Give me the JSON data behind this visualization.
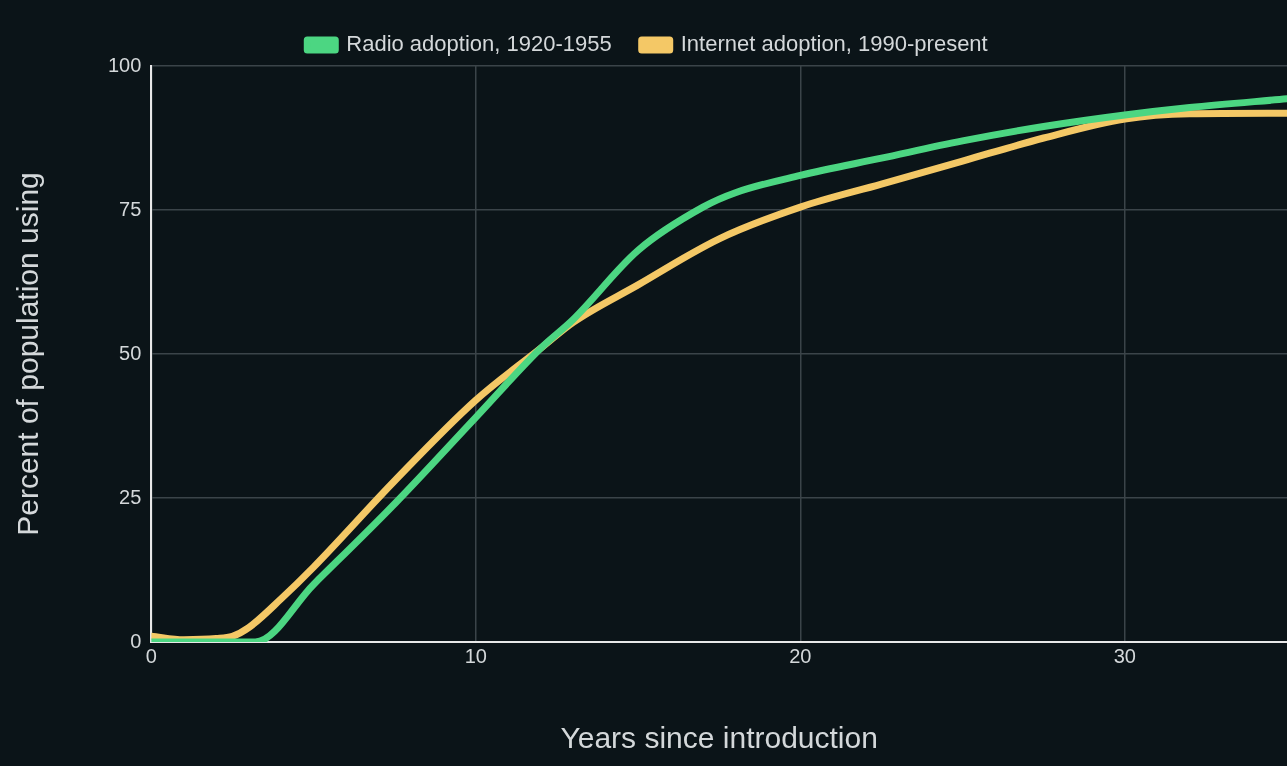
{
  "chart_data": {
    "type": "line",
    "xlabel": "Years since introduction",
    "ylabel": "Percent of population using",
    "xlim": [
      0,
      35
    ],
    "xticks": [
      0,
      10,
      20,
      30
    ],
    "ylim": [
      0,
      100
    ],
    "yticks": [
      0,
      25,
      50,
      75,
      100
    ],
    "grid": true,
    "legend": "top",
    "series": [
      {
        "name": "Radio adoption, 1920-1955",
        "color": "#4cd682",
        "x": [
          0,
          2,
          3.2,
          5,
          7.5,
          10,
          12,
          13,
          15,
          17,
          18,
          20,
          22.5,
          25,
          27.5,
          30,
          32,
          35
        ],
        "values": [
          0,
          0,
          0,
          10,
          24,
          39,
          51,
          56,
          68,
          75.5,
          78,
          81,
          84,
          87,
          89.5,
          91.5,
          92.8,
          94.3
        ]
      },
      {
        "name": "Internet adoption, 1990-present",
        "color": "#f4c866",
        "x": [
          0,
          1,
          2,
          2.5,
          3,
          4,
          5,
          7.5,
          10,
          12,
          13,
          15,
          17.5,
          20,
          22.5,
          25,
          27.5,
          30,
          32,
          35
        ],
        "values": [
          1,
          0.4,
          0.6,
          1,
          2.5,
          7.5,
          13,
          28,
          42,
          51,
          55.5,
          62,
          70,
          75.5,
          79.5,
          83.5,
          87.5,
          90.8,
          91.7,
          91.8
        ]
      }
    ]
  }
}
